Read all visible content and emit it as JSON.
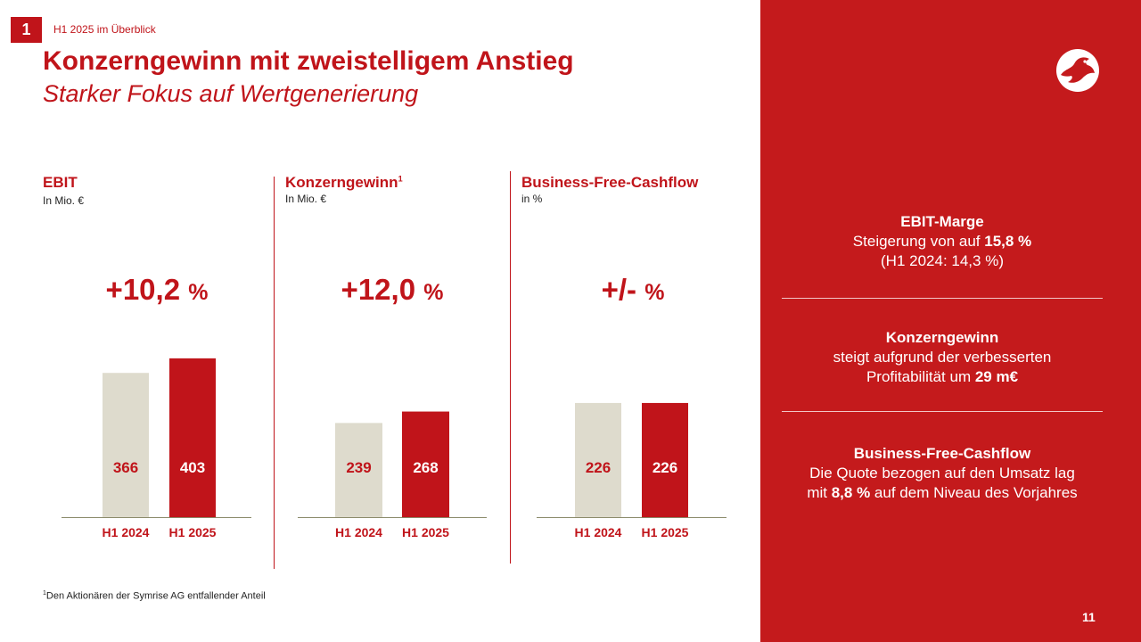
{
  "header": {
    "section_number": "1",
    "breadcrumb": "H1 2025 im Überblick",
    "title": "Konzerngewinn mit zweistelligem Anstieg",
    "subtitle": "Starker Fokus auf Wertgenerierung"
  },
  "panels": [
    {
      "title": "EBIT",
      "superscript": "",
      "unit": "In Mio. €",
      "change_value": "+10,2",
      "change_unit": "%"
    },
    {
      "title": "Konzerngewinn",
      "superscript": "1",
      "unit": "In Mio. €",
      "change_value": "+12,0",
      "change_unit": "%"
    },
    {
      "title": "Business-Free-Cashflow",
      "superscript": "",
      "unit": "in %",
      "change_value": "+/-",
      "change_unit": "%"
    }
  ],
  "chart_data": [
    {
      "type": "bar",
      "categories": [
        "H1 2024",
        "H1 2025"
      ],
      "values": [
        366,
        403
      ],
      "value_labels": [
        "366",
        "403"
      ],
      "ylim": [
        0,
        500
      ],
      "colors": [
        "#dedbcd",
        "#c0141a"
      ]
    },
    {
      "type": "bar",
      "categories": [
        "H1 2024",
        "H1 2025"
      ],
      "values": [
        239,
        268
      ],
      "value_labels": [
        "239",
        "268"
      ],
      "ylim": [
        0,
        500
      ],
      "colors": [
        "#dedbcd",
        "#c0141a"
      ]
    },
    {
      "type": "bar",
      "categories": [
        "H1 2024",
        "H1 2025"
      ],
      "values": [
        226,
        226
      ],
      "value_labels": [
        "226",
        "226"
      ],
      "ylim": [
        0,
        300
      ],
      "colors": [
        "#dedbcd",
        "#c0141a"
      ]
    }
  ],
  "footnote": {
    "marker": "1",
    "text": "Den Aktionären der Symrise AG entfallender Anteil"
  },
  "right_panel": {
    "ebit_margin": {
      "heading": "EBIT-Marge",
      "line1_prefix": "Steigerung von auf ",
      "line1_bold": "15,8 %",
      "line2": "(H1 2024: 14,3 %)"
    },
    "konzerngewinn": {
      "heading": "Konzerngewinn",
      "line1": "steigt aufgrund der verbesserten",
      "line2_prefix": "Profitabilität um ",
      "line2_bold": "29 m€"
    },
    "bfcf": {
      "heading": "Business-Free-Cashflow",
      "line1": "Die Quote bezogen auf den Umsatz lag",
      "line2_prefix": "mit ",
      "line2_bold": "8,8 %",
      "line2_suffix": " auf dem Niveau des Vorjahres"
    }
  },
  "page_number": "11",
  "colors": {
    "accent": "#c0141a",
    "panel_bg": "#c41a1c",
    "bar_prior": "#dedbcd",
    "baseline": "#8a8a6a"
  }
}
